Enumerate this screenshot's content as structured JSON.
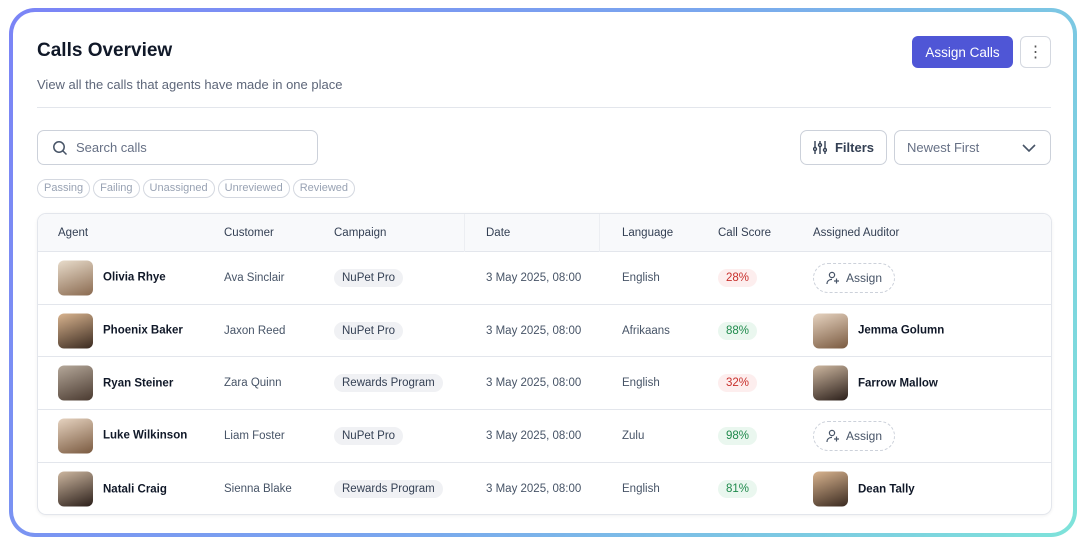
{
  "header": {
    "title": "Calls Overview",
    "subtitle": "View all the calls that agents have made in one place",
    "assign_calls": "Assign Calls",
    "more": "⋮"
  },
  "toolbar": {
    "search_placeholder": "Search calls",
    "filters": "Filters",
    "sort": "Newest First"
  },
  "chips": [
    "Passing",
    "Failing",
    "Unassigned",
    "Unreviewed",
    "Reviewed"
  ],
  "table": {
    "columns": [
      "Agent",
      "Customer",
      "Campaign",
      "Date",
      "Language",
      "Call Score",
      "Assigned Auditor"
    ],
    "assign_label": "Assign",
    "rows": [
      {
        "agent": "Olivia Rhye",
        "customer": "Ava Sinclair",
        "campaign": "NuPet Pro",
        "date": "3 May 2025, 08:00",
        "language": "English",
        "score": "28%",
        "status": "fail",
        "auditor": ""
      },
      {
        "agent": "Phoenix Baker",
        "customer": "Jaxon Reed",
        "campaign": "NuPet Pro",
        "date": "3 May 2025, 08:00",
        "language": "Afrikaans",
        "score": "88%",
        "status": "pass",
        "auditor": "Jemma Golumn"
      },
      {
        "agent": "Ryan Steiner",
        "customer": "Zara Quinn",
        "campaign": "Rewards Program",
        "date": "3 May 2025, 08:00",
        "language": "English",
        "score": "32%",
        "status": "fail",
        "auditor": "Farrow Mallow"
      },
      {
        "agent": "Luke Wilkinson",
        "customer": "Liam Foster",
        "campaign": "NuPet Pro",
        "date": "3 May 2025, 08:00",
        "language": "Zulu",
        "score": "98%",
        "status": "pass",
        "auditor": ""
      },
      {
        "agent": "Natali Craig",
        "customer": "Sienna Blake",
        "campaign": "Rewards Program",
        "date": "3 May 2025, 08:00",
        "language": "English",
        "score": "81%",
        "status": "pass",
        "auditor": "Dean Tally"
      }
    ]
  },
  "colors": {
    "primary": "#4f56d6",
    "fail": "#c8302c",
    "pass": "#1f8a4c"
  }
}
